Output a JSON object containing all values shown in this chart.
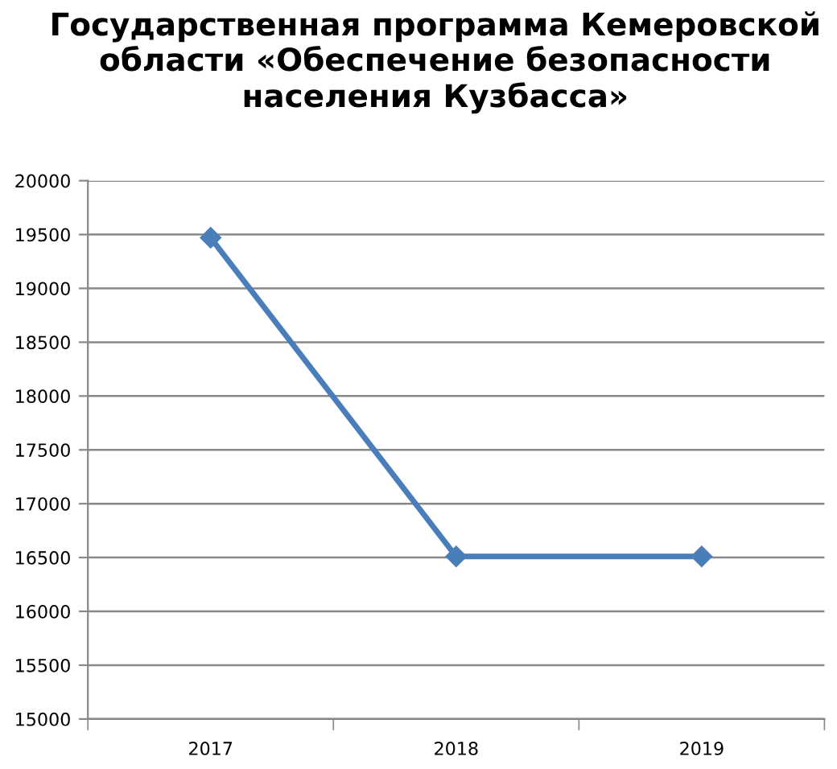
{
  "chart_data": {
    "type": "line",
    "title": "Государственная программа Кемеровской области «Обеспечение безопасности населения Кузбасса»",
    "categories": [
      "2017",
      "2018",
      "2019"
    ],
    "series": [
      {
        "color": "#4a7ebb",
        "values": [
          19470,
          16510,
          16510
        ]
      }
    ],
    "ylim": [
      15000,
      20000
    ],
    "yticks": [
      15000,
      15500,
      16000,
      16500,
      17000,
      17500,
      18000,
      18500,
      19000,
      19500,
      20000
    ],
    "grid": "y",
    "marker": "diamond",
    "line_style": "solid",
    "legend": false
  }
}
